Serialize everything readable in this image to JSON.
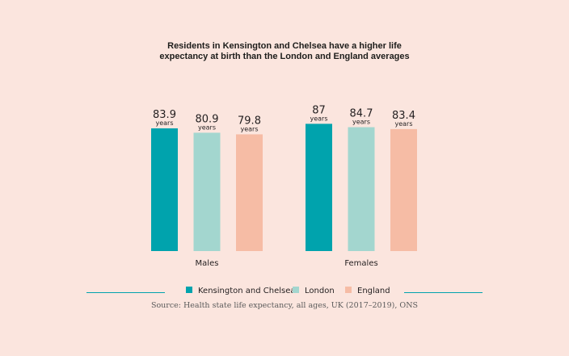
{
  "chart_data": {
    "type": "bar",
    "title": [
      "Residents in Kensington and Chelsea have a higher life",
      "expectancy at birth than the London and England averages"
    ],
    "categories": [
      "Males",
      "Females"
    ],
    "value_unit": "years",
    "series": [
      {
        "name": "Kensington and Chelsea",
        "values": [
          83.9,
          87
        ],
        "labels": [
          "83.9",
          "87"
        ]
      },
      {
        "name": "London",
        "values": [
          80.9,
          84.7
        ],
        "labels": [
          "80.9",
          "84.7"
        ]
      },
      {
        "name": "England",
        "values": [
          79.8,
          83.4
        ],
        "labels": [
          "79.8",
          "83.4"
        ]
      }
    ],
    "legend_position": "bottom",
    "grid": false,
    "source": "Source: Health state life expectancy, all ages, UK (2017–2019), ONS"
  },
  "colors": {
    "background": "#fbe5de",
    "series": [
      "#00a3ad",
      "#a3d6cf",
      "#f6bca5"
    ],
    "legend_rule": "#00a3ad"
  }
}
